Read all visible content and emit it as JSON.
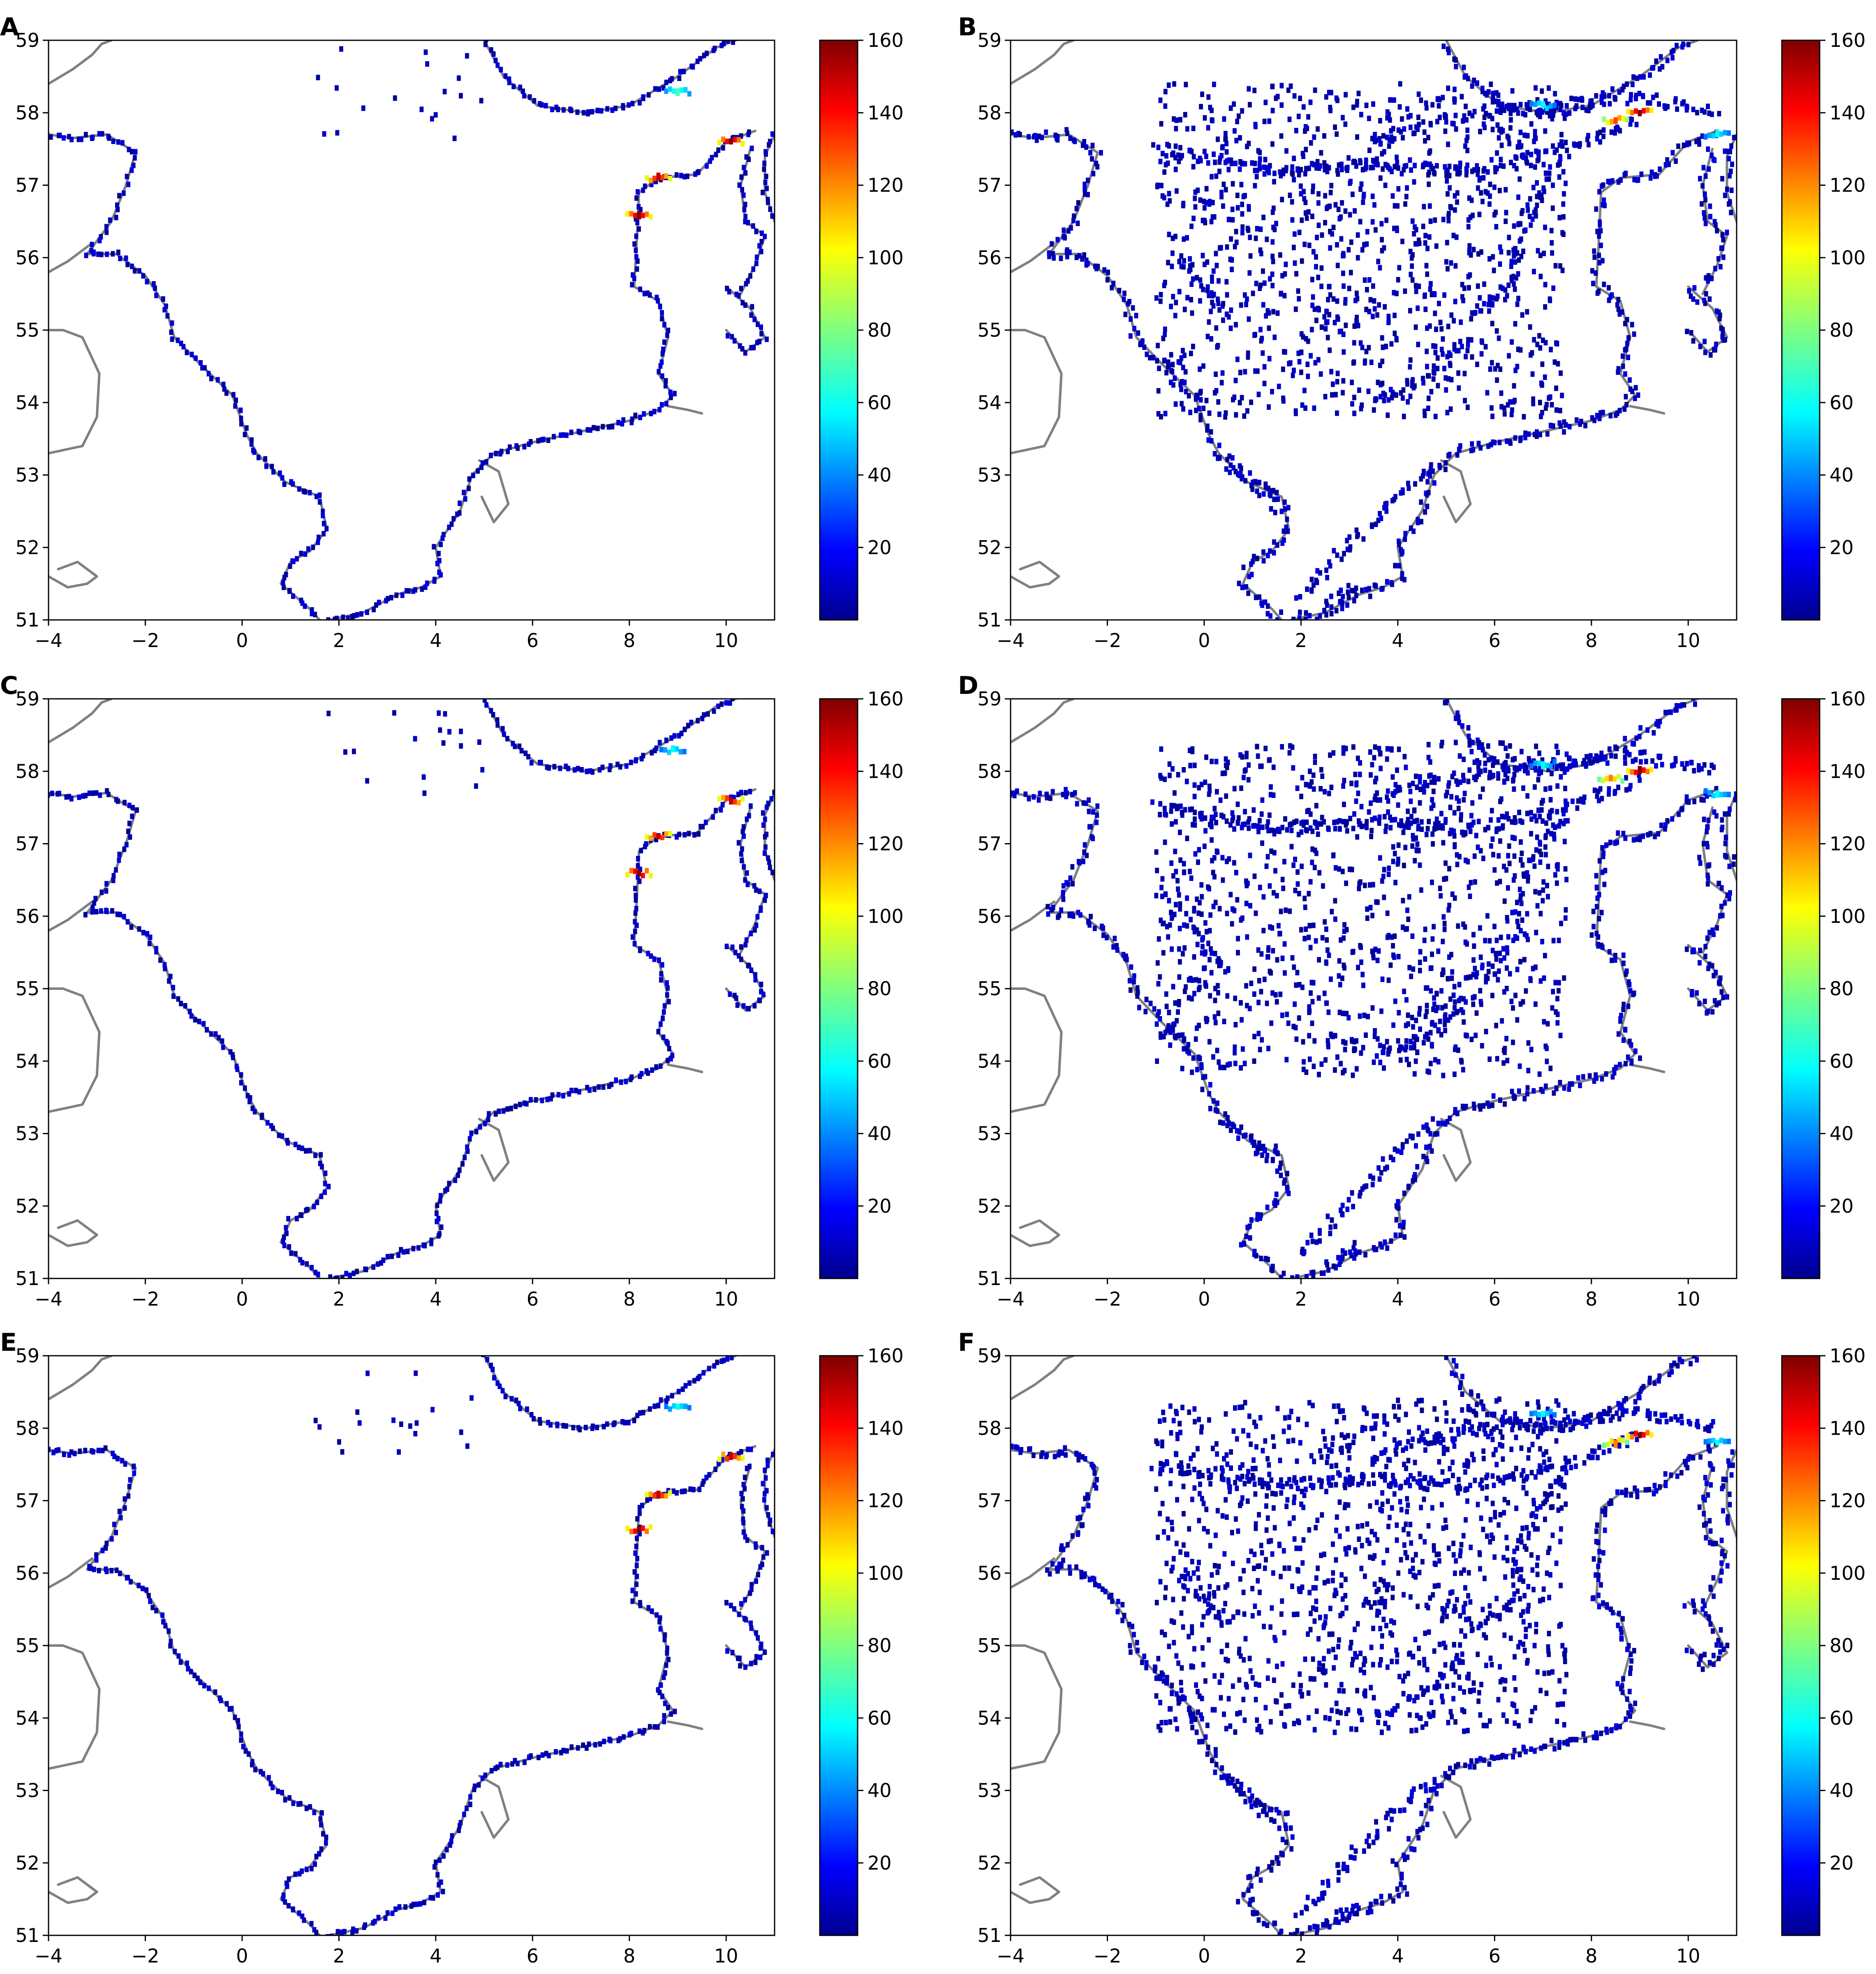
{
  "chart_data": [
    {
      "type": "heatmap",
      "panel": "A",
      "xlim": [
        -4,
        11
      ],
      "ylim": [
        51,
        59
      ],
      "xticks": [
        -4,
        -2,
        0,
        2,
        4,
        6,
        8,
        10
      ],
      "yticks": [
        51,
        52,
        53,
        54,
        55,
        56,
        57,
        58,
        59
      ],
      "colorbar": {
        "min": 0,
        "max": 160,
        "ticks": [
          20,
          40,
          60,
          80,
          100,
          120,
          140,
          160
        ],
        "colormap": "jet"
      },
      "hotspots": [
        {
          "lon": 8.2,
          "lat": 56.6,
          "value": 160
        },
        {
          "lon": 8.6,
          "lat": 57.1,
          "value": 150
        },
        {
          "lon": 10.1,
          "lat": 57.6,
          "value": 160
        },
        {
          "lon": 9.0,
          "lat": 58.3,
          "value": 70
        }
      ]
    },
    {
      "type": "heatmap",
      "panel": "B",
      "xlim": [
        -4,
        11
      ],
      "ylim": [
        51,
        59
      ],
      "xticks": [
        -4,
        -2,
        0,
        2,
        4,
        6,
        8,
        10
      ],
      "yticks": [
        51,
        52,
        53,
        54,
        55,
        56,
        57,
        58,
        59
      ],
      "colorbar": {
        "min": 0,
        "max": 160,
        "ticks": [
          20,
          40,
          60,
          80,
          100,
          120,
          140,
          160
        ],
        "colormap": "jet"
      },
      "hotspots": [
        {
          "lon": 9.0,
          "lat": 58.0,
          "value": 160
        },
        {
          "lon": 8.5,
          "lat": 57.9,
          "value": 130
        },
        {
          "lon": 7.0,
          "lat": 58.1,
          "value": 60
        },
        {
          "lon": 10.6,
          "lat": 57.7,
          "value": 60
        }
      ]
    },
    {
      "type": "heatmap",
      "panel": "C",
      "xlim": [
        -4,
        11
      ],
      "ylim": [
        51,
        59
      ],
      "xticks": [
        -4,
        -2,
        0,
        2,
        4,
        6,
        8,
        10
      ],
      "yticks": [
        51,
        52,
        53,
        54,
        55,
        56,
        57,
        58,
        59
      ],
      "colorbar": {
        "min": 0,
        "max": 160,
        "ticks": [
          20,
          40,
          60,
          80,
          100,
          120,
          140,
          160
        ],
        "colormap": "jet"
      },
      "hotspots": [
        {
          "lon": 8.2,
          "lat": 56.6,
          "value": 160
        },
        {
          "lon": 8.6,
          "lat": 57.1,
          "value": 150
        },
        {
          "lon": 10.1,
          "lat": 57.6,
          "value": 150
        },
        {
          "lon": 8.9,
          "lat": 58.3,
          "value": 60
        }
      ]
    },
    {
      "type": "heatmap",
      "panel": "D",
      "xlim": [
        -4,
        11
      ],
      "ylim": [
        51,
        59
      ],
      "xticks": [
        -4,
        -2,
        0,
        2,
        4,
        6,
        8,
        10
      ],
      "yticks": [
        51,
        52,
        53,
        54,
        55,
        56,
        57,
        58,
        59
      ],
      "colorbar": {
        "min": 0,
        "max": 160,
        "ticks": [
          20,
          40,
          60,
          80,
          100,
          120,
          140,
          160
        ],
        "colormap": "jet"
      },
      "hotspots": [
        {
          "lon": 9.0,
          "lat": 58.0,
          "value": 160
        },
        {
          "lon": 8.4,
          "lat": 57.9,
          "value": 120
        },
        {
          "lon": 7.0,
          "lat": 58.1,
          "value": 60
        },
        {
          "lon": 10.6,
          "lat": 57.7,
          "value": 60
        }
      ]
    },
    {
      "type": "heatmap",
      "panel": "E",
      "xlim": [
        -4,
        11
      ],
      "ylim": [
        51,
        59
      ],
      "xticks": [
        -4,
        -2,
        0,
        2,
        4,
        6,
        8,
        10
      ],
      "yticks": [
        51,
        52,
        53,
        54,
        55,
        56,
        57,
        58,
        59
      ],
      "colorbar": {
        "min": 0,
        "max": 160,
        "ticks": [
          20,
          40,
          60,
          80,
          100,
          120,
          140,
          160
        ],
        "colormap": "jet"
      },
      "hotspots": [
        {
          "lon": 8.2,
          "lat": 56.6,
          "value": 160
        },
        {
          "lon": 8.6,
          "lat": 57.1,
          "value": 150
        },
        {
          "lon": 10.1,
          "lat": 57.6,
          "value": 150
        },
        {
          "lon": 9.0,
          "lat": 58.3,
          "value": 60
        }
      ]
    },
    {
      "type": "heatmap",
      "panel": "F",
      "xlim": [
        -4,
        11
      ],
      "ylim": [
        51,
        59
      ],
      "xticks": [
        -4,
        -2,
        0,
        2,
        4,
        6,
        8,
        10
      ],
      "yticks": [
        51,
        52,
        53,
        54,
        55,
        56,
        57,
        58,
        59
      ],
      "colorbar": {
        "min": 0,
        "max": 160,
        "ticks": [
          20,
          40,
          60,
          80,
          100,
          120,
          140,
          160
        ],
        "colormap": "jet"
      },
      "hotspots": [
        {
          "lon": 9.0,
          "lat": 57.9,
          "value": 160
        },
        {
          "lon": 8.5,
          "lat": 57.8,
          "value": 120
        },
        {
          "lon": 7.0,
          "lat": 58.2,
          "value": 60
        },
        {
          "lon": 10.6,
          "lat": 57.8,
          "value": 60
        }
      ]
    }
  ],
  "colors": {
    "coastline": "#808080",
    "low_value": "#00008f",
    "frame": "#000000",
    "background": "#ffffff"
  }
}
